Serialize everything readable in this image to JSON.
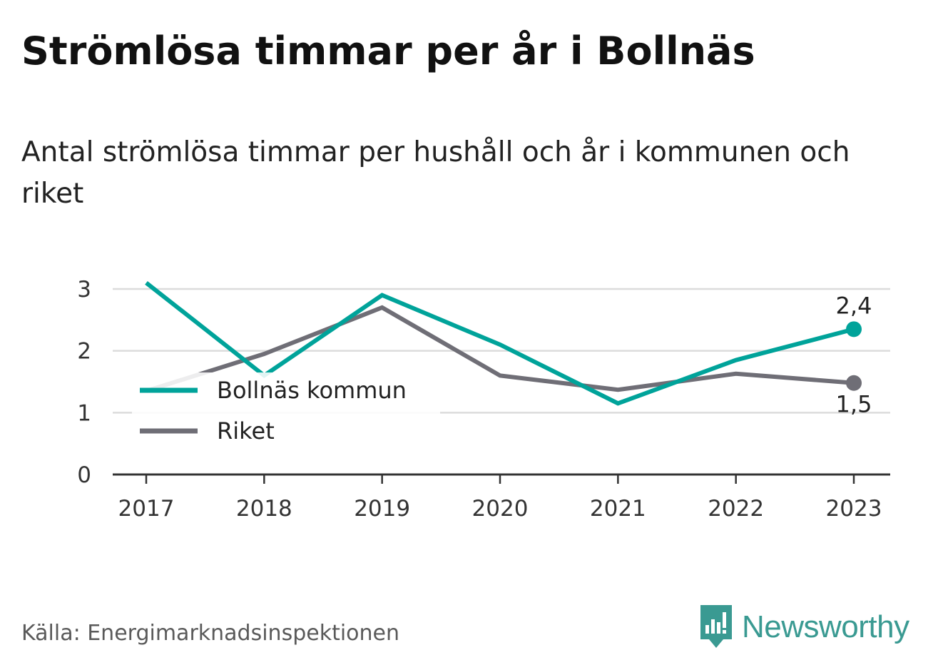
{
  "title": "Strömlösa timmar per år i Bollnäs",
  "subtitle": "Antal strömlösa timmar per hushåll och år i kommunen och riket",
  "source": "Källa: Energimarknadsinspektionen",
  "brand": {
    "name": "Newsworthy",
    "icon": "newsworthy-logo-icon",
    "color": "#3a9a92"
  },
  "chart_data": {
    "type": "line",
    "x": [
      "2017",
      "2018",
      "2019",
      "2020",
      "2021",
      "2022",
      "2023"
    ],
    "yticks": [
      "0",
      "1",
      "2",
      "3"
    ],
    "ylim": [
      0,
      3
    ],
    "grid": true,
    "legend_position": "left",
    "series": [
      {
        "name": "Bollnäs kommun",
        "color": "#00a39a",
        "values": [
          3.1,
          1.6,
          2.9,
          2.1,
          1.15,
          1.85,
          2.35
        ]
      },
      {
        "name": "Riket",
        "color": "#6f6e76",
        "values": [
          1.35,
          1.95,
          2.7,
          1.6,
          1.37,
          1.63,
          1.48
        ]
      }
    ],
    "end_labels": [
      "2,4",
      "1,5"
    ]
  }
}
